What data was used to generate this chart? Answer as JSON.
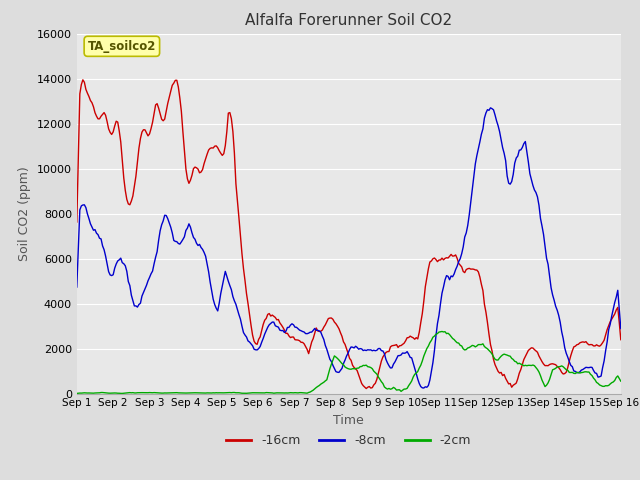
{
  "title": "Alfalfa Forerunner Soil CO2",
  "xlabel": "Time",
  "ylabel": "Soil CO2 (ppm)",
  "ylim": [
    0,
    16000
  ],
  "yticks": [
    0,
    2000,
    4000,
    6000,
    8000,
    10000,
    12000,
    14000,
    16000
  ],
  "legend_labels": [
    "-16cm",
    "-8cm",
    "-2cm"
  ],
  "legend_colors": [
    "#cc0000",
    "#0000cc",
    "#00aa00"
  ],
  "annotation_text": "TA_soilco2",
  "annotation_bg": "#ffffaa",
  "annotation_border": "#bbbb00",
  "fig_bg": "#dddddd",
  "plot_bg": "#e8e8e8",
  "grid_color": "#ffffff",
  "n_points": 360,
  "x_start": 0,
  "x_end": 15.0,
  "xtick_positions": [
    0,
    1,
    2,
    3,
    4,
    5,
    6,
    7,
    8,
    9,
    10,
    11,
    12,
    13,
    14,
    15
  ],
  "xtick_labels": [
    "Sep 1",
    "Sep 2",
    "Sep 3",
    "Sep 4",
    "Sep 5",
    "Sep 6",
    "Sep 7",
    "Sep 8",
    "Sep 9",
    "Sep 10",
    "Sep 11",
    "Sep 12",
    "Sep 13",
    "Sep 14",
    "Sep 15",
    "Sep 16"
  ]
}
